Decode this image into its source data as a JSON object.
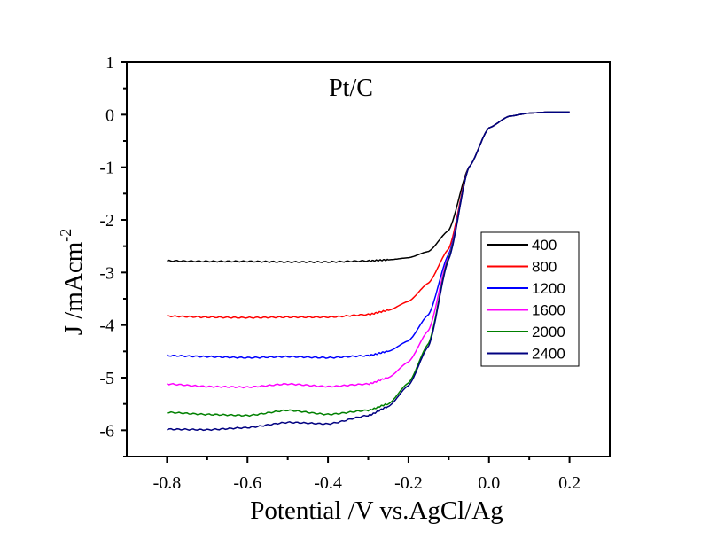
{
  "chart_data": {
    "type": "line",
    "title": "Pt/C",
    "xlabel": "Potential /V vs.AgCl/Ag",
    "ylabel": "J /mAcm",
    "ylabel_superscript": "-2",
    "xlim": [
      -0.9,
      0.3
    ],
    "ylim": [
      -6.5,
      1
    ],
    "xticks": [
      "-0.8",
      "-0.6",
      "-0.4",
      "-0.2",
      "0.0",
      "0.2"
    ],
    "yticks": [
      "1",
      "0",
      "-1",
      "-2",
      "-3",
      "-4",
      "-5",
      "-6"
    ],
    "grid": false,
    "legend_position": "right",
    "x": [
      -0.8,
      -0.7,
      -0.6,
      -0.5,
      -0.4,
      -0.3,
      -0.25,
      -0.2,
      -0.15,
      -0.1,
      -0.05,
      0.0,
      0.05,
      0.1,
      0.15,
      0.2
    ],
    "series": [
      {
        "name": "400",
        "color": "#000000",
        "values": [
          -2.78,
          -2.79,
          -2.79,
          -2.8,
          -2.8,
          -2.78,
          -2.76,
          -2.72,
          -2.6,
          -2.2,
          -1.0,
          -0.25,
          -0.03,
          0.03,
          0.05,
          0.05
        ]
      },
      {
        "name": "800",
        "color": "#ff0000",
        "values": [
          -3.83,
          -3.85,
          -3.86,
          -3.85,
          -3.85,
          -3.8,
          -3.72,
          -3.55,
          -3.2,
          -2.55,
          -1.0,
          -0.25,
          -0.03,
          0.03,
          0.05,
          0.05
        ]
      },
      {
        "name": "1200",
        "color": "#0000ff",
        "values": [
          -4.58,
          -4.6,
          -4.62,
          -4.6,
          -4.62,
          -4.58,
          -4.5,
          -4.3,
          -3.8,
          -2.65,
          -1.0,
          -0.25,
          -0.03,
          0.03,
          0.05,
          0.05
        ]
      },
      {
        "name": "1600",
        "color": "#ff00ff",
        "values": [
          -5.12,
          -5.17,
          -5.18,
          -5.12,
          -5.17,
          -5.12,
          -5.0,
          -4.7,
          -4.1,
          -2.7,
          -1.0,
          -0.25,
          -0.03,
          0.03,
          0.05,
          0.05
        ]
      },
      {
        "name": "2000",
        "color": "#008000",
        "values": [
          -5.66,
          -5.7,
          -5.72,
          -5.62,
          -5.7,
          -5.62,
          -5.5,
          -5.1,
          -4.35,
          -2.72,
          -1.0,
          -0.25,
          -0.03,
          0.03,
          0.05,
          0.05
        ]
      },
      {
        "name": "2400",
        "color": "#000080",
        "values": [
          -5.98,
          -5.99,
          -5.95,
          -5.85,
          -5.88,
          -5.72,
          -5.55,
          -5.15,
          -4.4,
          -2.75,
          -1.0,
          -0.25,
          -0.03,
          0.03,
          0.05,
          0.05
        ]
      }
    ]
  }
}
